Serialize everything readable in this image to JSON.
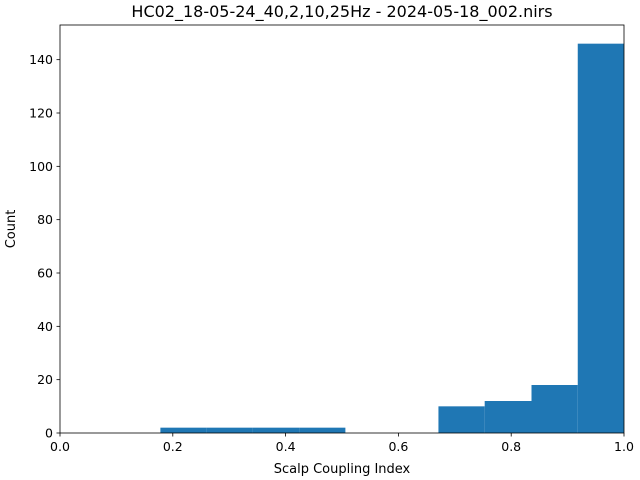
{
  "chart_data": {
    "type": "bar",
    "title": "HC02_18-05-24_40,2,10,25Hz - 2024-05-18_002.nirs",
    "xlabel": "Scalp Coupling Index",
    "ylabel": "Count",
    "xlim": [
      0.0,
      1.0
    ],
    "ylim": [
      0,
      153
    ],
    "x_ticks": [
      0.0,
      0.2,
      0.4,
      0.6,
      0.8,
      1.0
    ],
    "x_tick_labels": [
      "0.0",
      "0.2",
      "0.4",
      "0.6",
      "0.8",
      "1.0"
    ],
    "y_ticks": [
      0,
      20,
      40,
      60,
      80,
      100,
      120,
      140
    ],
    "y_tick_labels": [
      "0",
      "20",
      "40",
      "60",
      "80",
      "100",
      "120",
      "140"
    ],
    "grid": false,
    "legend": "none",
    "bar_color": "#1f77b4",
    "bins": [
      {
        "x0": 0.178,
        "x1": 0.26,
        "count": 2
      },
      {
        "x0": 0.26,
        "x1": 0.342,
        "count": 2
      },
      {
        "x0": 0.342,
        "x1": 0.424,
        "count": 2
      },
      {
        "x0": 0.424,
        "x1": 0.506,
        "count": 2
      },
      {
        "x0": 0.506,
        "x1": 0.589,
        "count": 0
      },
      {
        "x0": 0.589,
        "x1": 0.671,
        "count": 0
      },
      {
        "x0": 0.671,
        "x1": 0.753,
        "count": 10
      },
      {
        "x0": 0.753,
        "x1": 0.836,
        "count": 12
      },
      {
        "x0": 0.836,
        "x1": 0.918,
        "count": 18
      },
      {
        "x0": 0.918,
        "x1": 1.0,
        "count": 146
      }
    ]
  }
}
